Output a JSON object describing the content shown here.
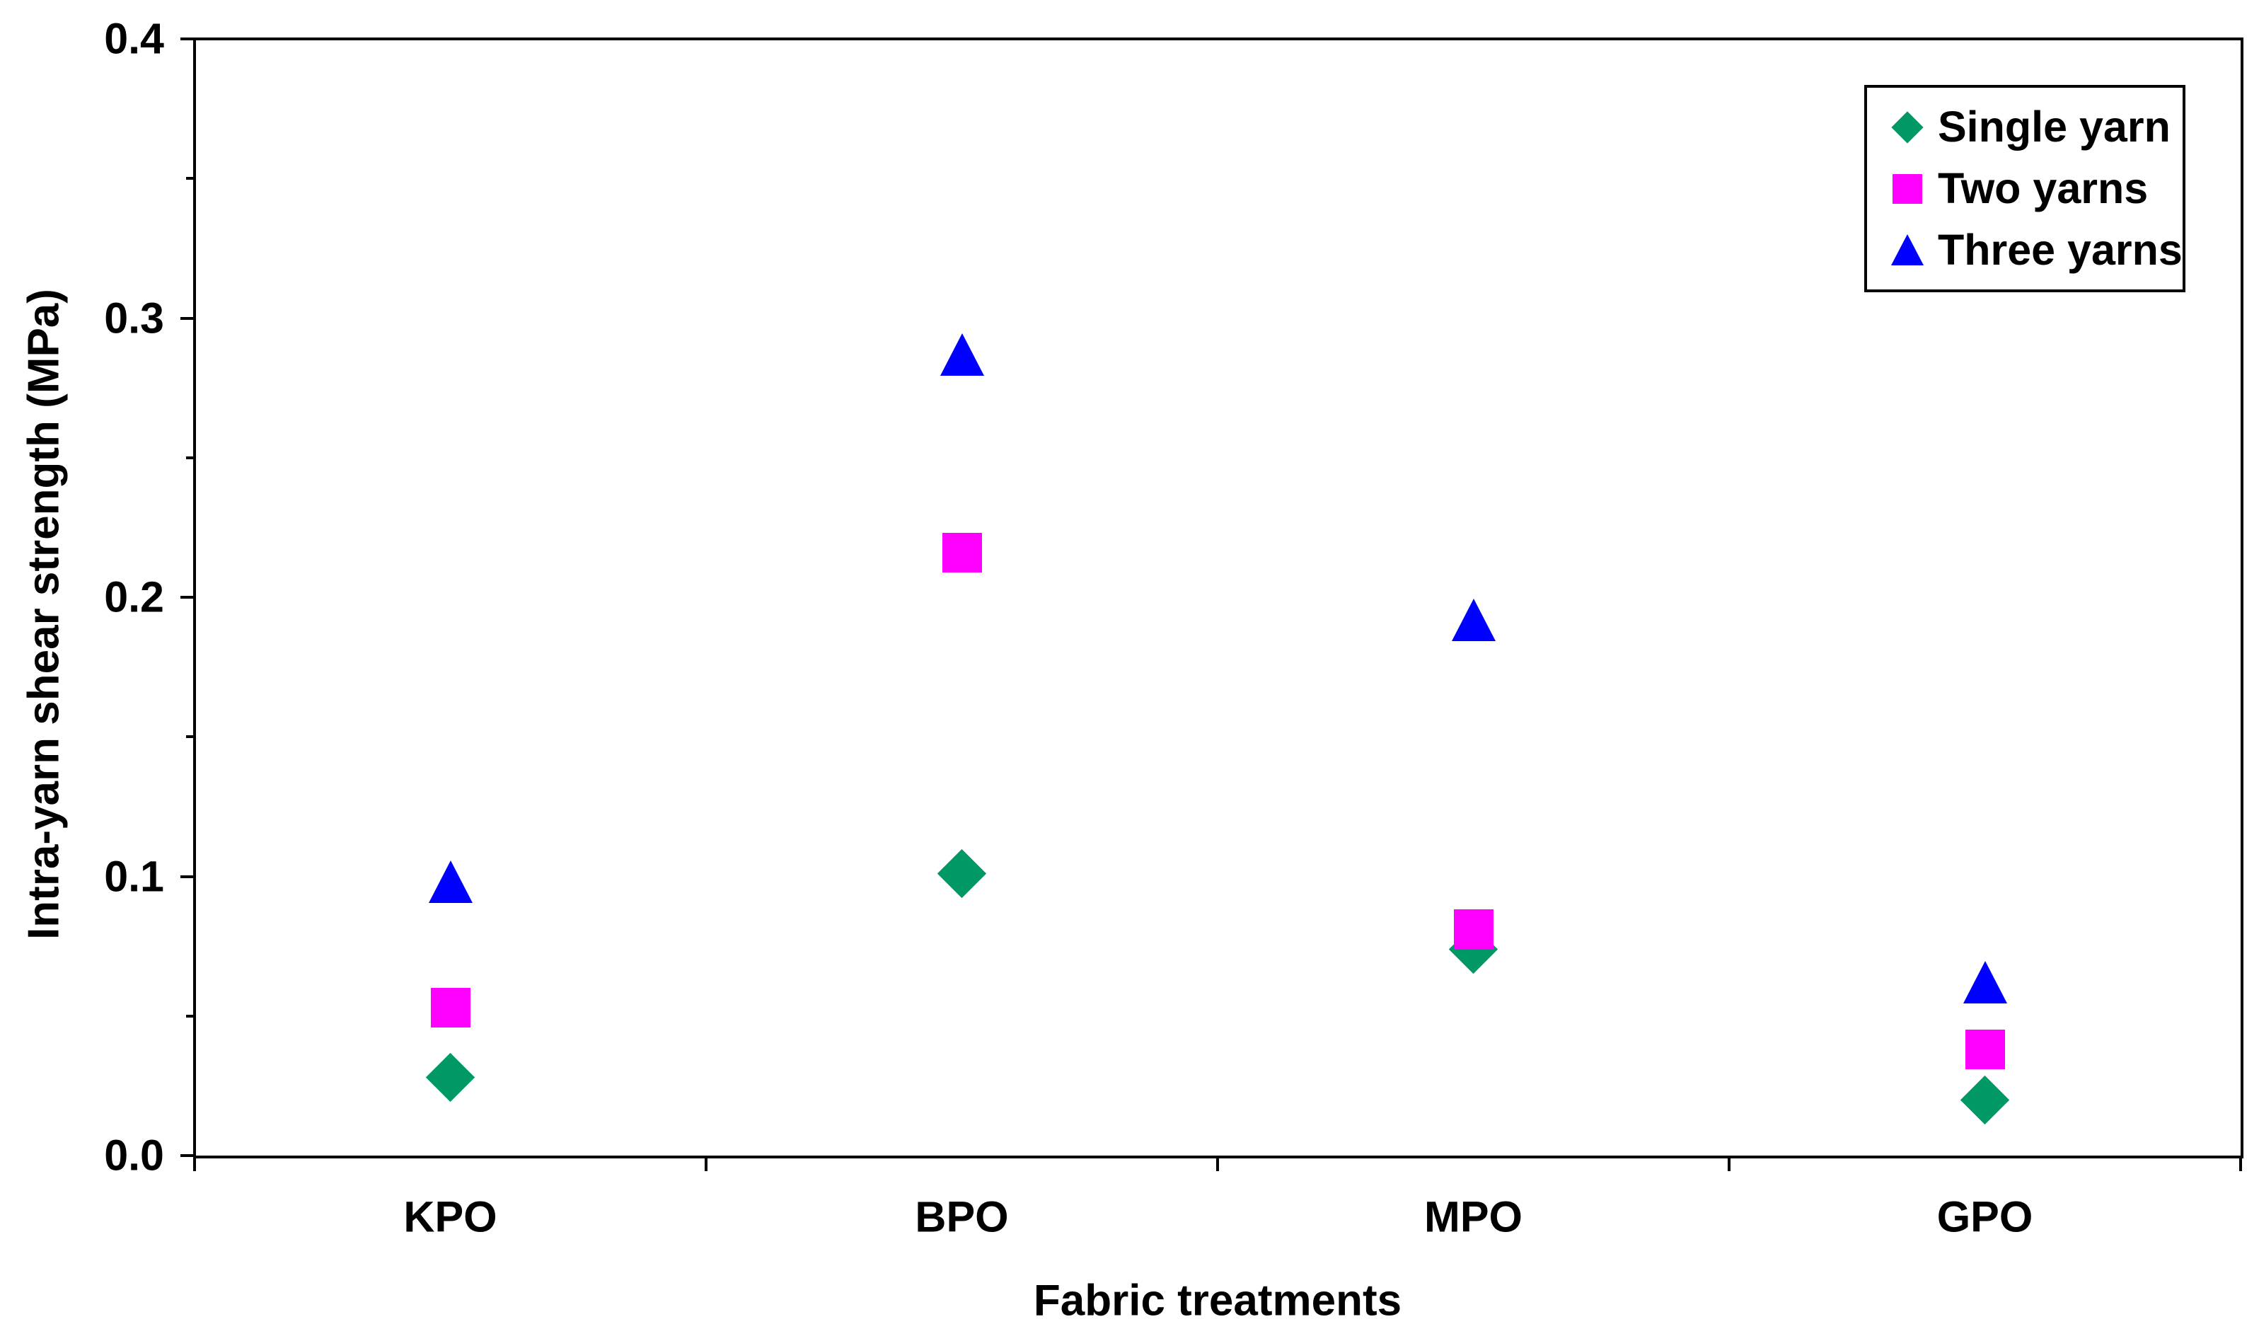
{
  "chart_data": {
    "type": "scatter",
    "categories": [
      "KPO",
      "BPO",
      "MPO",
      "GPO"
    ],
    "series": [
      {
        "name": "Single yarn",
        "marker": "diamond",
        "color": "#009966",
        "values": [
          0.028,
          0.101,
          0.074,
          0.02
        ]
      },
      {
        "name": "Two yarns",
        "marker": "square",
        "color": "#FF00FF",
        "values": [
          0.053,
          0.216,
          0.081,
          0.038
        ]
      },
      {
        "name": "Three yarns",
        "marker": "triangle",
        "color": "#0000FF",
        "values": [
          0.098,
          0.287,
          0.192,
          0.062
        ]
      }
    ],
    "xlabel": "Fabric treatments",
    "ylabel": "Intra-yarn shear strength (MPa)",
    "ylim": [
      0.0,
      0.4
    ],
    "y_tick_labels": [
      "0.4",
      "0.3",
      "0.2",
      "0.1",
      "0.0"
    ],
    "y_major_tick_interval": 0.1,
    "y_minor_tick_interval": 0.05,
    "grid": false,
    "legend_position": "top-right",
    "axis_color": "#000000",
    "background_color": "#FFFFFF"
  }
}
